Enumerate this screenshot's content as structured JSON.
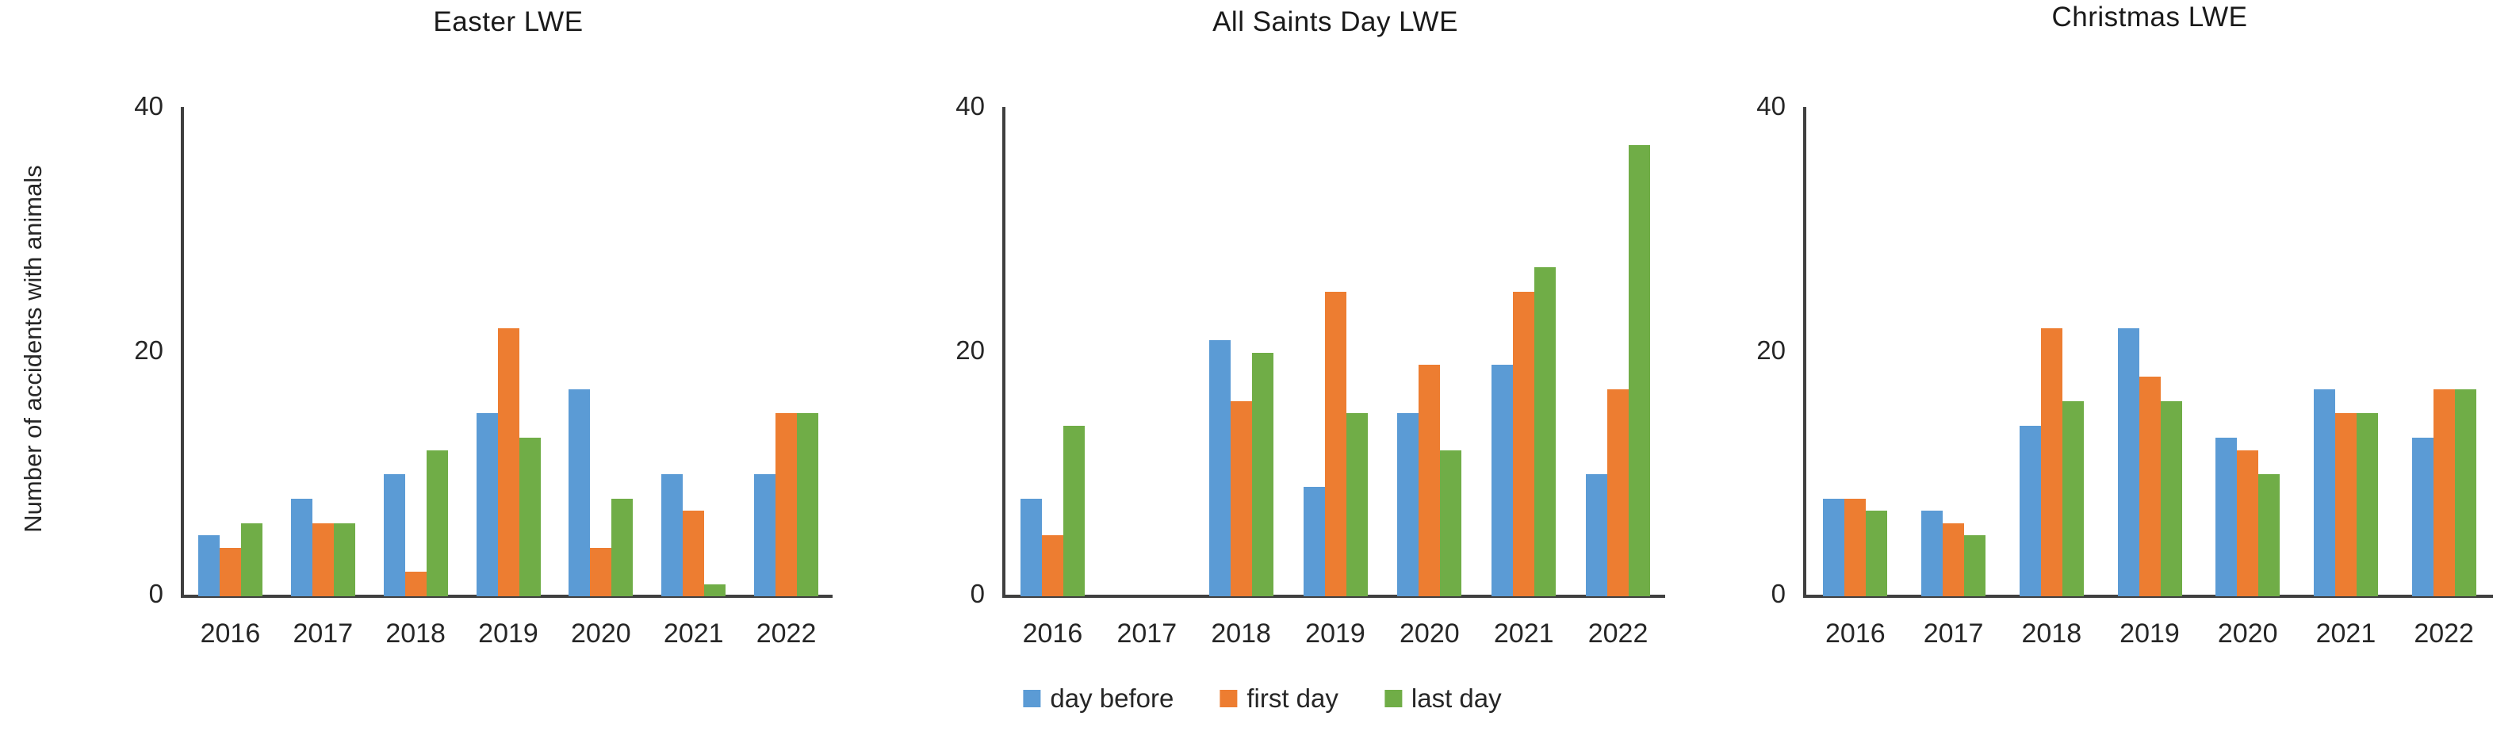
{
  "page": {
    "background": "#ffffff"
  },
  "colors": {
    "day_before": "#5b9bd5",
    "first_day": "#ed7d31",
    "last_day": "#70ad47",
    "axis": "#3f3f3f",
    "text": "#262626"
  },
  "y_axis": {
    "label": "Number of accidents with animals",
    "ticks": [
      "40",
      "20",
      "0"
    ],
    "max": 40
  },
  "legend": [
    {
      "label": "day before",
      "color": "#5b9bd5"
    },
    {
      "label": "first day",
      "color": "#ed7d31"
    },
    {
      "label": "last day",
      "color": "#70ad47"
    }
  ],
  "chart_data": [
    {
      "type": "bar",
      "title": "Easter LWE",
      "categories": [
        "2016",
        "2017",
        "2018",
        "2019",
        "2020",
        "2021",
        "2022"
      ],
      "series": [
        {
          "name": "day before",
          "color": "#5b9bd5",
          "values": [
            5,
            8,
            10,
            15,
            17,
            10,
            10
          ]
        },
        {
          "name": "first day",
          "color": "#ed7d31",
          "values": [
            4,
            6,
            2,
            22,
            4,
            7,
            15
          ]
        },
        {
          "name": "last day",
          "color": "#70ad47",
          "values": [
            6,
            6,
            12,
            13,
            8,
            1,
            15
          ]
        }
      ],
      "xlabel": "",
      "ylabel": "Number of accidents with animals",
      "ylim": [
        0,
        40
      ],
      "yticks": [
        0,
        20,
        40
      ],
      "grid": false,
      "legend_position": "bottom-center"
    },
    {
      "type": "bar",
      "title": "All Saints Day LWE",
      "categories": [
        "2016",
        "2017",
        "2018",
        "2019",
        "2020",
        "2021",
        "2022"
      ],
      "series": [
        {
          "name": "day before",
          "color": "#5b9bd5",
          "values": [
            8,
            0,
            21,
            9,
            15,
            19,
            10
          ]
        },
        {
          "name": "first day",
          "color": "#ed7d31",
          "values": [
            5,
            0,
            16,
            25,
            19,
            25,
            17
          ]
        },
        {
          "name": "last day",
          "color": "#70ad47",
          "values": [
            14,
            0,
            20,
            15,
            12,
            27,
            37
          ]
        }
      ],
      "xlabel": "",
      "ylabel": "",
      "ylim": [
        0,
        40
      ],
      "yticks": [
        0,
        20,
        40
      ],
      "grid": false,
      "legend_position": "bottom-center"
    },
    {
      "type": "bar",
      "title": "Christmas LWE",
      "categories": [
        "2016",
        "2017",
        "2018",
        "2019",
        "2020",
        "2021",
        "2022"
      ],
      "series": [
        {
          "name": "day before",
          "color": "#5b9bd5",
          "values": [
            8,
            7,
            14,
            22,
            13,
            17,
            13
          ]
        },
        {
          "name": "first day",
          "color": "#ed7d31",
          "values": [
            8,
            6,
            22,
            18,
            12,
            15,
            17
          ]
        },
        {
          "name": "last day",
          "color": "#70ad47",
          "values": [
            7,
            5,
            16,
            16,
            10,
            15,
            17
          ]
        }
      ],
      "xlabel": "",
      "ylabel": "",
      "ylim": [
        0,
        40
      ],
      "yticks": [
        0,
        20,
        40
      ],
      "grid": false,
      "legend_position": "bottom-center"
    }
  ]
}
